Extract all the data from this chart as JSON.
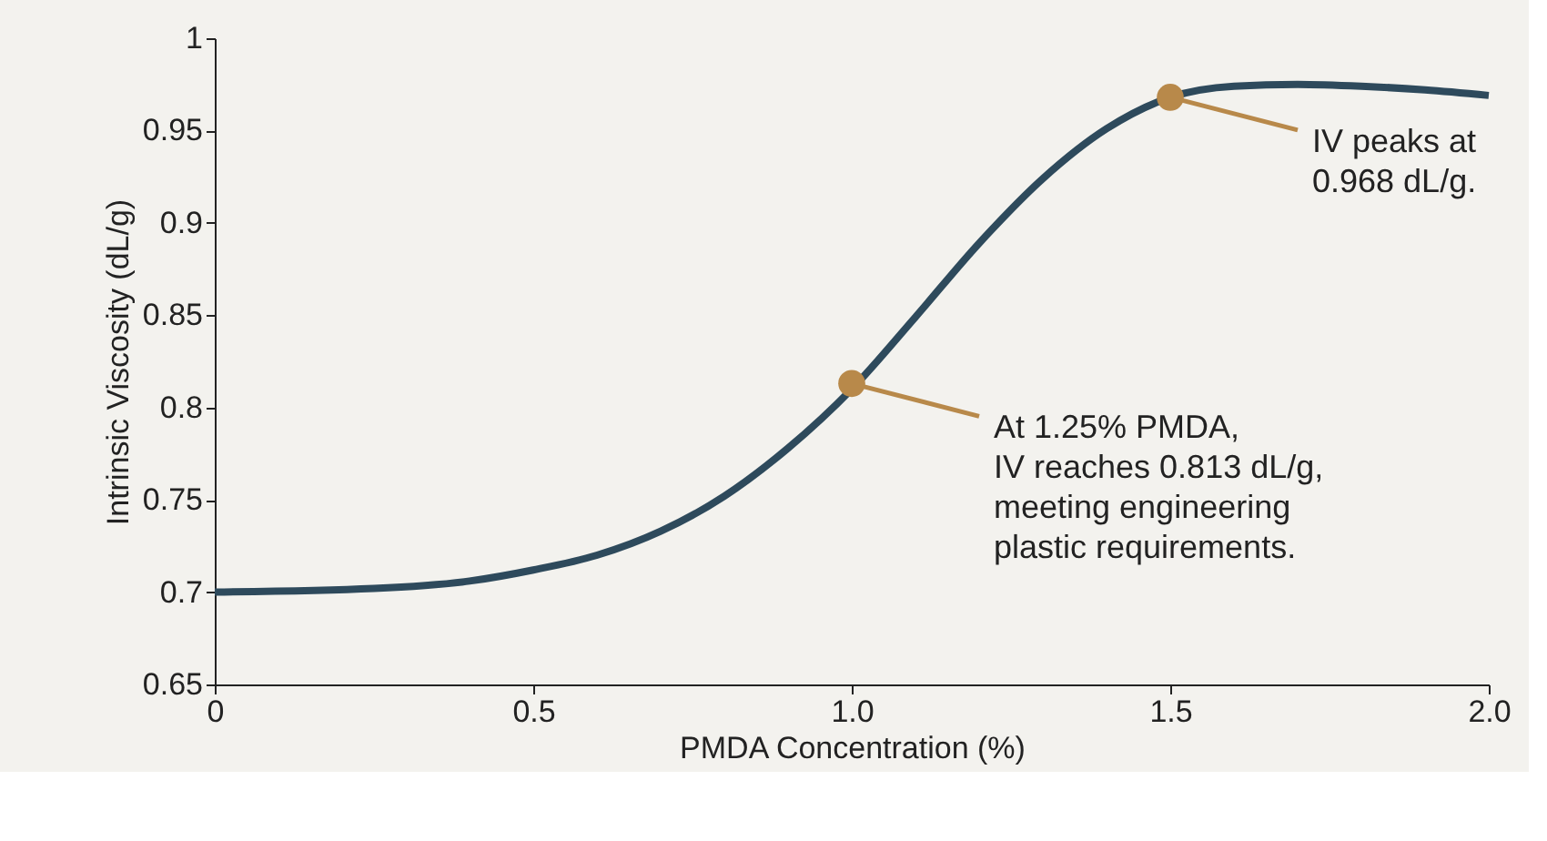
{
  "chart_data": {
    "type": "line",
    "xlabel": "PMDA Concentration (%)",
    "ylabel": "Intrinsic Viscosity (dL/g)",
    "xlim": [
      0,
      2
    ],
    "xticks": [
      0,
      0.5,
      {
        "value": 1,
        "label": "1.0"
      },
      {
        "value": 1.5,
        "label": "1.5"
      },
      {
        "value": 2,
        "label": "2.0"
      }
    ],
    "ylim": [
      0.65,
      1
    ],
    "yticks": [
      0.65,
      0.7,
      0.75,
      0.8,
      0.85,
      0.9,
      0.95,
      1
    ],
    "grid": false,
    "line_style": "solid",
    "series": [
      {
        "color": "#2e4a5c",
        "x": [
          0,
          0.25,
          0.4,
          0.5,
          0.6,
          0.7,
          0.8,
          0.9,
          1.0,
          1.1,
          1.2,
          1.3,
          1.4,
          1.5,
          1.6,
          1.7,
          1.8,
          1.9,
          2.0
        ],
        "values": [
          0.7,
          0.702,
          0.706,
          0.712,
          0.72,
          0.733,
          0.752,
          0.778,
          0.81,
          0.849,
          0.889,
          0.924,
          0.951,
          0.968,
          0.974,
          0.975,
          0.974,
          0.972,
          0.969
        ]
      },
      {
        "type": "scatter",
        "color": "#b8894a",
        "marker": "circle",
        "x": [
          1.0,
          1.5
        ],
        "values": [
          0.813,
          0.968
        ]
      }
    ],
    "annotations": [
      {
        "text": "IV peaks at\n0.968 dL/g.",
        "x": 1.5,
        "y": 0.968
      },
      {
        "text": "At 1.25% PMDA,\nIV reaches 0.813 dL/g,\nmeeting engineering\nplastic requirements.",
        "x": 1.0,
        "y": 0.813
      }
    ]
  }
}
